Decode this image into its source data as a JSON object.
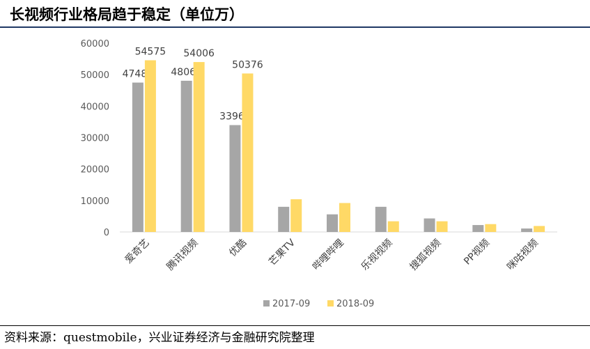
{
  "header": {
    "title": "长视频行业格局趋于稳定（单位万）"
  },
  "footer": {
    "source": "资料来源：questmobile，兴业证券经济与金融研究院整理"
  },
  "colors": {
    "series1": "#a6a6a6",
    "series2": "#ffd966",
    "axis": "#d9d9d9",
    "rule": "#1f3864"
  },
  "chart_data": {
    "type": "bar",
    "title": "",
    "xlabel": "",
    "ylabel": "",
    "ylim": [
      0,
      60000
    ],
    "yticks": [
      0,
      10000,
      20000,
      30000,
      40000,
      50000,
      60000
    ],
    "grid": false,
    "legend": "bottom",
    "categories": [
      "爱奇艺",
      "腾讯视频",
      "优酷",
      "芒果TV",
      "哔哩哔哩",
      "乐视视频",
      "搜狐视频",
      "PP视频",
      "咪咕视频"
    ],
    "series": [
      {
        "name": "2017-09",
        "values": [
          47481,
          48060,
          33969,
          8000,
          5600,
          8000,
          4300,
          2200,
          1100
        ],
        "labels": [
          "47481",
          "48060",
          "33969",
          "",
          "",
          "",
          "",
          "",
          ""
        ]
      },
      {
        "name": "2018-09",
        "values": [
          54575,
          54006,
          50376,
          10400,
          9200,
          3400,
          3400,
          2500,
          1900
        ],
        "labels": [
          "54575",
          "54006",
          "50376",
          "",
          "",
          "",
          "",
          "",
          ""
        ]
      }
    ]
  }
}
